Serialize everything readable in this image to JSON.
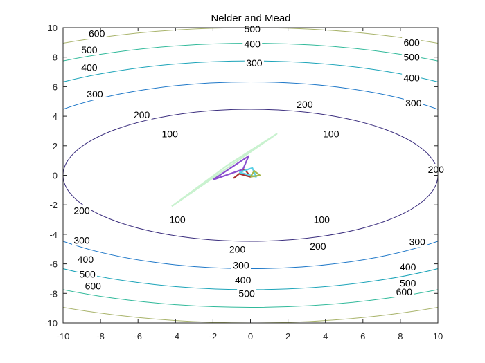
{
  "chart_data": {
    "type": "contour",
    "title": "Nelder and Mead",
    "xlabel": "",
    "ylabel": "",
    "xlim": [
      -10,
      10
    ],
    "ylim": [
      -10,
      10
    ],
    "xticks": [
      -10,
      -8,
      -6,
      -4,
      -2,
      0,
      2,
      4,
      6,
      8,
      10
    ],
    "yticks": [
      -10,
      -8,
      -6,
      -4,
      -2,
      0,
      2,
      4,
      6,
      8,
      10
    ],
    "grid": false,
    "box": true,
    "contour_function": "x^2 + 5*y^2",
    "contour_levels": [
      {
        "level": 100,
        "label": "100",
        "color": "#3b2e7e"
      },
      {
        "level": 200,
        "label": "200",
        "color": "#1f78c8"
      },
      {
        "level": 300,
        "label": "300",
        "color": "#1aa3b8"
      },
      {
        "level": 400,
        "label": "400",
        "color": "#30b99a"
      },
      {
        "level": 500,
        "label": "500",
        "color": "#a8b36a"
      },
      {
        "level": 600,
        "label": "600",
        "color": "#f2ab3a"
      }
    ],
    "contour_label_positions": [
      {
        "label": "600",
        "x": -8.2,
        "y": 9.6
      },
      {
        "label": "500",
        "x": -8.6,
        "y": 8.5
      },
      {
        "label": "400",
        "x": -8.6,
        "y": 7.3
      },
      {
        "label": "300",
        "x": -8.3,
        "y": 5.5
      },
      {
        "label": "200",
        "x": -5.8,
        "y": 4.1
      },
      {
        "label": "100",
        "x": -4.3,
        "y": 2.8
      },
      {
        "label": "500",
        "x": 0.1,
        "y": 9.9
      },
      {
        "label": "400",
        "x": 0.1,
        "y": 8.9
      },
      {
        "label": "300",
        "x": 0.2,
        "y": 7.6
      },
      {
        "label": "200",
        "x": 2.9,
        "y": 4.8
      },
      {
        "label": "100",
        "x": 4.3,
        "y": 2.8
      },
      {
        "label": "600",
        "x": 8.6,
        "y": 9.0
      },
      {
        "label": "500",
        "x": 8.6,
        "y": 8.0
      },
      {
        "label": "400",
        "x": 8.6,
        "y": 6.6
      },
      {
        "label": "300",
        "x": 8.7,
        "y": 4.9
      },
      {
        "label": "200",
        "x": 9.9,
        "y": 0.4
      },
      {
        "label": "200",
        "x": -9.0,
        "y": -2.4
      },
      {
        "label": "100",
        "x": -3.9,
        "y": -3.0
      },
      {
        "label": "100",
        "x": 3.8,
        "y": -3.0
      },
      {
        "label": "300",
        "x": -9.0,
        "y": -4.4
      },
      {
        "label": "200",
        "x": -0.7,
        "y": -5.0
      },
      {
        "label": "200",
        "x": 3.6,
        "y": -4.8
      },
      {
        "label": "300",
        "x": 8.9,
        "y": -4.5
      },
      {
        "label": "400",
        "x": -8.8,
        "y": -5.7
      },
      {
        "label": "300",
        "x": -0.5,
        "y": -6.1
      },
      {
        "label": "400",
        "x": 8.4,
        "y": -6.2
      },
      {
        "label": "500",
        "x": -8.7,
        "y": -6.7
      },
      {
        "label": "400",
        "x": -0.4,
        "y": -7.1
      },
      {
        "label": "500",
        "x": 8.4,
        "y": -7.3
      },
      {
        "label": "600",
        "x": -8.4,
        "y": -7.5
      },
      {
        "label": "500",
        "x": -0.2,
        "y": -8.0
      },
      {
        "label": "600",
        "x": 8.2,
        "y": -7.9
      }
    ],
    "series": [
      {
        "color": "#c9f2cf",
        "x": [
          -4.2,
          1.4,
          -1.2,
          -4.2
        ],
        "y": [
          -2.1,
          2.8,
          0.7,
          -2.1
        ]
      },
      {
        "color": "#8b4fcf",
        "x": [
          -2.0,
          -0.1,
          -0.4,
          -2.0
        ],
        "y": [
          -0.3,
          1.3,
          0.4,
          -0.3
        ]
      },
      {
        "color": "#a83232",
        "x": [
          -0.9,
          -0.3,
          0.0,
          -0.6,
          -0.9
        ],
        "y": [
          -0.2,
          0.4,
          -0.1,
          0.1,
          -0.2
        ]
      },
      {
        "color": "#5ad0e6",
        "x": [
          -0.6,
          0.1,
          0.3,
          -0.6
        ],
        "y": [
          0.2,
          0.5,
          -0.1,
          0.2
        ]
      },
      {
        "color": "#a6b84a",
        "x": [
          0.0,
          0.2,
          0.5,
          0.0
        ],
        "y": [
          -0.1,
          0.3,
          0.0,
          -0.1
        ]
      }
    ]
  }
}
